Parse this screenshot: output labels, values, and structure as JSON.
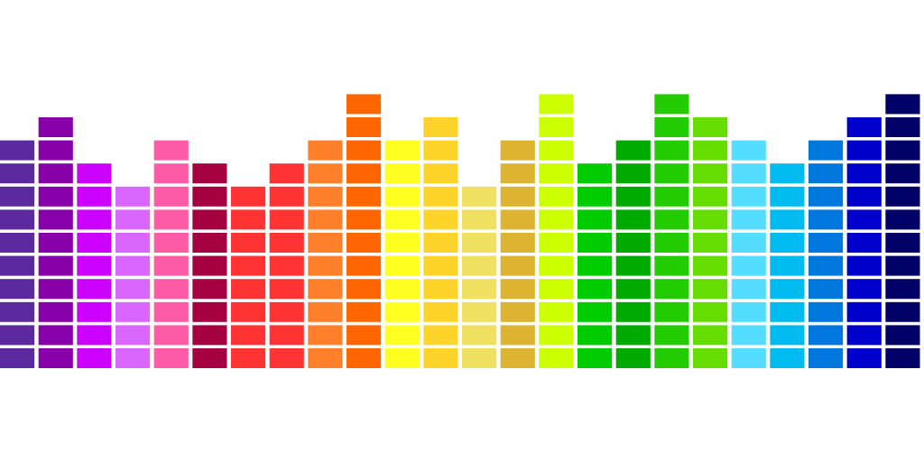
{
  "columns": [
    {
      "color": "#5b2a9e",
      "blocks": 10
    },
    {
      "color": "#8800aa",
      "blocks": 11
    },
    {
      "color": "#cc00ff",
      "blocks": 9
    },
    {
      "color": "#d966ff",
      "blocks": 8
    },
    {
      "color": "#ff5aa5",
      "blocks": 10
    },
    {
      "color": "#a50040",
      "blocks": 9
    },
    {
      "color": "#ff3333",
      "blocks": 8
    },
    {
      "color": "#ff3333",
      "blocks": 9
    },
    {
      "color": "#ff7f2a",
      "blocks": 10
    },
    {
      "color": "#ff6600",
      "blocks": 12
    },
    {
      "color": "#ffff22",
      "blocks": 10
    },
    {
      "color": "#ffd42a",
      "blocks": 11
    },
    {
      "color": "#f0e060",
      "blocks": 8
    },
    {
      "color": "#dcb432",
      "blocks": 10
    },
    {
      "color": "#ccff00",
      "blocks": 12
    },
    {
      "color": "#00cc00",
      "blocks": 9
    },
    {
      "color": "#00aa00",
      "blocks": 10
    },
    {
      "color": "#22cc00",
      "blocks": 12
    },
    {
      "color": "#66dd00",
      "blocks": 11
    },
    {
      "color": "#55ddff",
      "blocks": 10
    },
    {
      "color": "#00bbf0",
      "blocks": 9
    },
    {
      "color": "#0077dd",
      "blocks": 10
    },
    {
      "color": "#0000cc",
      "blocks": 11
    },
    {
      "color": "#000066",
      "blocks": 12
    }
  ]
}
